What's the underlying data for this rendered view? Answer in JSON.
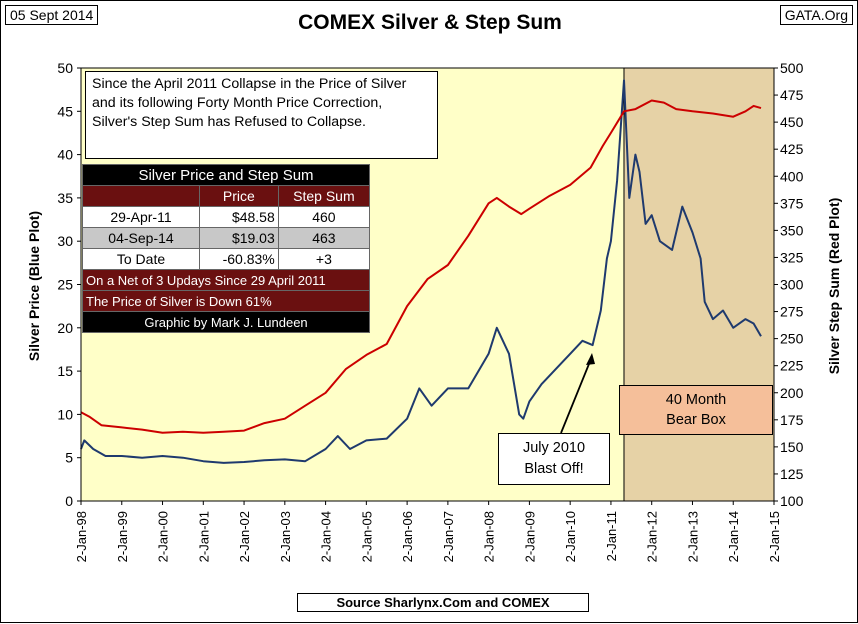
{
  "header": {
    "date": "05 Sept 2014",
    "source_site": "GATA.Org",
    "footer": "Source Sharlynx.Com and COMEX"
  },
  "chart_data": {
    "type": "line",
    "title": "COMEX Silver & Step Sum",
    "ylabel_left": "Silver Price   (Blue Plot)",
    "ylabel_right": "Silver Step Sum    (Red Plot)",
    "x_ticks": [
      "2-Jan-98",
      "2-Jan-99",
      "2-Jan-00",
      "2-Jan-01",
      "2-Jan-02",
      "2-Jan-03",
      "2-Jan-04",
      "2-Jan-05",
      "2-Jan-06",
      "2-Jan-07",
      "2-Jan-08",
      "2-Jan-09",
      "2-Jan-10",
      "2-Jan-11",
      "2-Jan-12",
      "2-Jan-13",
      "2-Jan-14",
      "2-Jan-15"
    ],
    "xlim": [
      1998.0,
      2015.0
    ],
    "ylim_left": [
      0,
      50
    ],
    "ylim_right": [
      100,
      500
    ],
    "left_ticks": [
      0,
      5,
      10,
      15,
      20,
      25,
      30,
      35,
      40,
      45,
      50
    ],
    "right_ticks": [
      100,
      125,
      150,
      175,
      200,
      225,
      250,
      275,
      300,
      325,
      350,
      375,
      400,
      425,
      450,
      475,
      500
    ],
    "grid": "none",
    "plot_colors": {
      "background": "#ffffc8",
      "bear_box": "#e6d2a6",
      "price": "#1f3a6e",
      "step_sum": "#cc0000"
    },
    "series": [
      {
        "name": "Silver Price",
        "color": "#1f3a6e",
        "axis": "left",
        "x": [
          1998.0,
          1998.08,
          1998.3,
          1998.6,
          1999.0,
          1999.5,
          2000.0,
          2000.5,
          2001.0,
          2001.5,
          2002.0,
          2002.5,
          2003.0,
          2003.5,
          2004.0,
          2004.3,
          2004.6,
          2005.0,
          2005.5,
          2006.0,
          2006.3,
          2006.6,
          2007.0,
          2007.5,
          2008.0,
          2008.2,
          2008.5,
          2008.75,
          2008.85,
          2009.0,
          2009.3,
          2009.6,
          2010.0,
          2010.3,
          2010.55,
          2010.75,
          2010.9,
          2011.0,
          2011.15,
          2011.32,
          2011.45,
          2011.6,
          2011.7,
          2011.85,
          2012.0,
          2012.2,
          2012.5,
          2012.75,
          2013.0,
          2013.2,
          2013.3,
          2013.5,
          2013.75,
          2014.0,
          2014.3,
          2014.5,
          2014.68
        ],
        "y": [
          6.0,
          7.0,
          6.0,
          5.2,
          5.2,
          5.0,
          5.2,
          5.0,
          4.6,
          4.4,
          4.5,
          4.7,
          4.8,
          4.6,
          6.0,
          7.5,
          6.0,
          7.0,
          7.2,
          9.5,
          13.0,
          11.0,
          13.0,
          13.0,
          17.0,
          20.0,
          17.0,
          10.0,
          9.5,
          11.5,
          13.5,
          15.0,
          17.0,
          18.5,
          18.0,
          22.0,
          28.0,
          30.0,
          37.0,
          48.58,
          35.0,
          40.0,
          38.0,
          32.0,
          33.0,
          30.0,
          29.0,
          34.0,
          31.0,
          28.0,
          23.0,
          21.0,
          22.0,
          20.0,
          21.0,
          20.5,
          19.03
        ]
      },
      {
        "name": "Step Sum",
        "color": "#cc0000",
        "axis": "right",
        "x": [
          1998.0,
          1998.2,
          1998.5,
          1999.0,
          1999.5,
          2000.0,
          2000.5,
          2001.0,
          2001.5,
          2002.0,
          2002.5,
          2003.0,
          2003.5,
          2004.0,
          2004.5,
          2005.0,
          2005.5,
          2006.0,
          2006.5,
          2007.0,
          2007.5,
          2008.0,
          2008.2,
          2008.5,
          2008.8,
          2009.0,
          2009.5,
          2010.0,
          2010.5,
          2010.8,
          2011.0,
          2011.32,
          2011.6,
          2012.0,
          2012.3,
          2012.6,
          2013.0,
          2013.5,
          2014.0,
          2014.3,
          2014.5,
          2014.68
        ],
        "y": [
          182,
          178,
          170,
          168,
          166,
          163,
          164,
          163,
          164,
          165,
          172,
          176,
          188,
          200,
          222,
          235,
          245,
          280,
          305,
          318,
          345,
          375,
          380,
          372,
          365,
          370,
          382,
          392,
          408,
          428,
          440,
          460,
          462,
          470,
          468,
          462,
          460,
          458,
          455,
          460,
          465,
          463
        ]
      }
    ],
    "annotations": {
      "note": "Since the April 2011 Collapse in the Price of Silver and its following  Forty Month Price Correction, Silver's Step Sum has Refused to Collapse.",
      "callout": [
        "July 2010",
        "Blast Off!"
      ],
      "bear_box": [
        "40 Month",
        "Bear Box"
      ]
    },
    "table": {
      "title": "Silver Price and Step Sum",
      "headers": [
        "",
        "Price",
        "Step Sum"
      ],
      "rows": [
        [
          "29-Apr-11",
          "$48.58",
          "460"
        ],
        [
          "04-Sep-14",
          "$19.03",
          "463"
        ],
        [
          "To Date",
          "-60.83%",
          "+3"
        ]
      ],
      "footer_lines": [
        "On a Net of 3 Updays Since 29 April 2011",
        "The Price of Silver is Down 61%"
      ],
      "credit": "Graphic by Mark J. Lundeen"
    }
  }
}
